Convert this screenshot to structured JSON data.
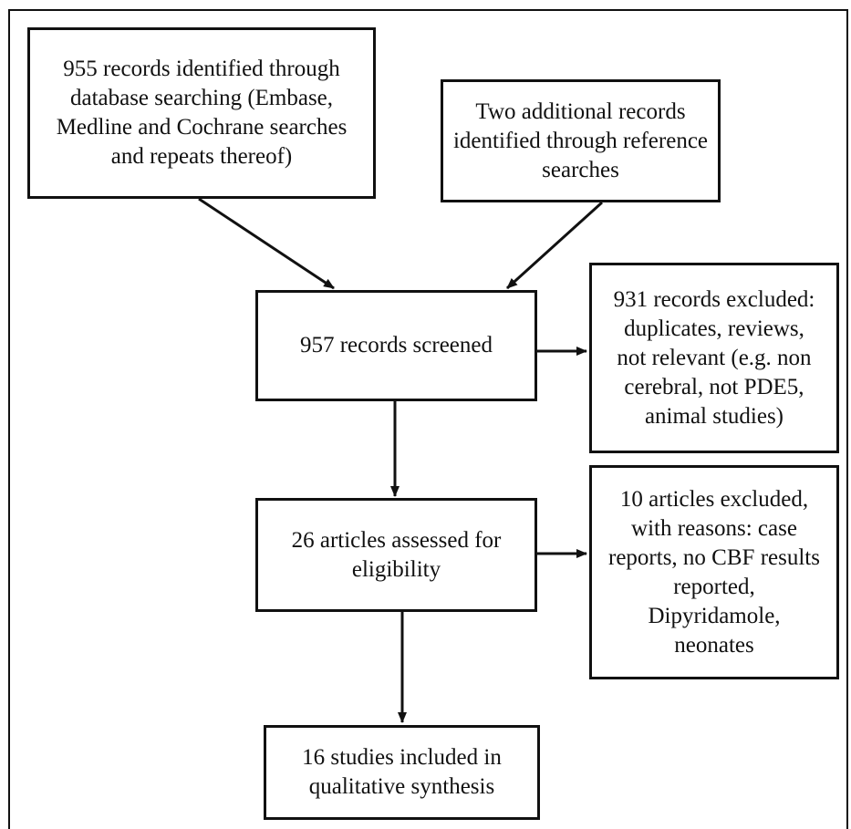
{
  "boxes": {
    "database_search": "955 records identified through\ndatabase searching (Embase,\nMedline and Cochrane searches\nand repeats thereof)",
    "reference_search": "Two additional records\nidentified through reference\nsearches",
    "screened": "957 records screened",
    "excluded_records": "931 records excluded:\nduplicates, reviews,\nnot relevant (e.g. non\ncerebral, not PDE5,\nanimal studies)",
    "assessed": "26 articles assessed for\neligibility",
    "excluded_articles": "10 articles excluded,\nwith reasons: case\nreports, no CBF results\nreported,\nDipyridamole,\nneonates",
    "included": "16 studies included in\nqualitative synthesis"
  },
  "colors": {
    "stroke": "#111111",
    "background": "#ffffff"
  }
}
